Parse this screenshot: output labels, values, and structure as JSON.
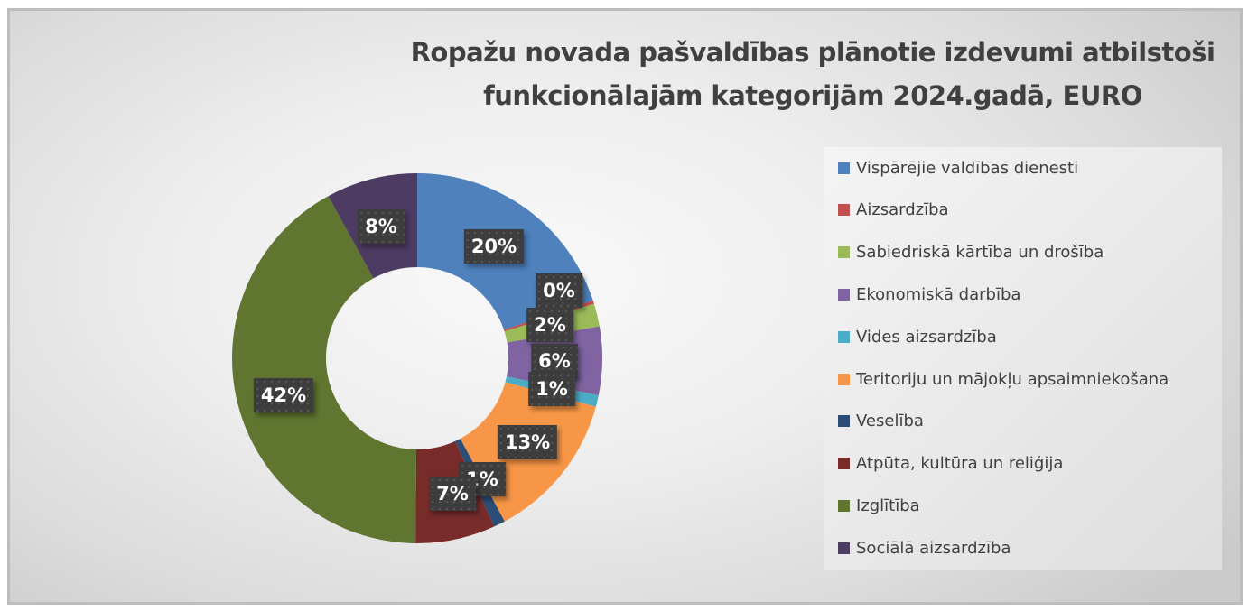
{
  "chart_data": {
    "type": "pie",
    "variant": "donut",
    "title": [
      "Ropažu novada pašvaldības plānotie izdevumi atbilstoši",
      "funkcionālajām kategorijām 2024.gadā, EURO"
    ],
    "legend_position": "right",
    "categories": [
      "Vispārējie valdības dienesti",
      "Aizsardzība",
      "Sabiedriskā kārtība un drošība",
      "Ekonomiskā darbība",
      "Vides aizsardzība",
      "Teritoriju un mājokļu apsaimniekošana",
      "Veselība",
      "Atpūta, kultūra un reliģija",
      "Izglītība",
      "Sociālā aizsardzība"
    ],
    "values": [
      20,
      0.3,
      2,
      6,
      1,
      13,
      1,
      7,
      42,
      8
    ],
    "labels": [
      "20%",
      "0%",
      "2%",
      "6%",
      "1%",
      "13%",
      "1%",
      "7%",
      "42%",
      "8%"
    ],
    "colors": [
      "#4f81bd",
      "#c0504d",
      "#9bbb59",
      "#8064a2",
      "#4bacc6",
      "#f79646",
      "#2c4d75",
      "#772c2a",
      "#5f7530",
      "#4d3b62"
    ]
  }
}
